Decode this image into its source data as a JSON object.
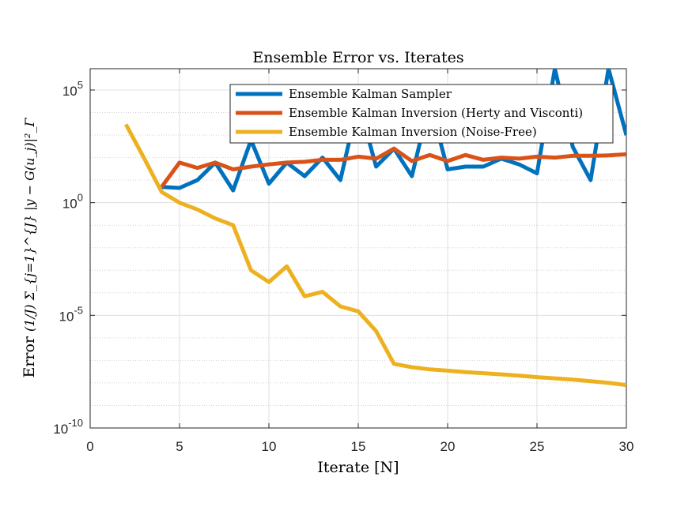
{
  "chart_data": {
    "type": "line",
    "title": "Ensemble Error vs. Iterates",
    "xlabel": "Iterate [N]",
    "ylabel_text": "Error",
    "ylabel_formula": "(1/J) Σ_{j=1}^{J} |y − G(u_j)|²_Γ",
    "xlim": [
      0,
      30
    ],
    "ylim": [
      1e-10,
      100000.0
    ],
    "yscale": "log",
    "grid": true,
    "x_ticks": [
      "0",
      "5",
      "10",
      "15",
      "20",
      "25",
      "30"
    ],
    "y_ticks": [
      "10^-10",
      "10^-5",
      "10^0",
      "10^5"
    ],
    "legend_position": "top-right",
    "series": [
      {
        "name": "Ensemble Kalman Sampler",
        "color": "#0072BD",
        "x": [
          4,
          5,
          6,
          7,
          8,
          9,
          10,
          11,
          12,
          13,
          14,
          15,
          16,
          17,
          18,
          19,
          20,
          21,
          22,
          23,
          24,
          25,
          26,
          27,
          28,
          29,
          30
        ],
        "y": [
          5,
          4.5,
          10,
          60,
          3.5,
          600,
          7,
          60,
          15,
          100,
          10,
          30000,
          40,
          250,
          15,
          30000,
          30,
          40,
          40,
          90,
          50,
          20,
          300000000,
          300,
          10,
          200000000,
          1000
        ]
      },
      {
        "name": "Ensemble Kalman Inversion (Herty and Visconti)",
        "color": "#D95319",
        "x": [
          4,
          5,
          6,
          7,
          8,
          9,
          10,
          11,
          12,
          13,
          14,
          15,
          16,
          17,
          18,
          19,
          20,
          21,
          22,
          23,
          24,
          25,
          26,
          27,
          28,
          29,
          30
        ],
        "y": [
          5,
          60,
          35,
          60,
          30,
          40,
          50,
          60,
          65,
          80,
          80,
          110,
          90,
          250,
          70,
          130,
          70,
          130,
          80,
          100,
          90,
          110,
          100,
          120,
          120,
          125,
          140
        ]
      },
      {
        "name": "Ensemble Kalman Inversion (Noise-Free)",
        "color": "#EDB120",
        "x": [
          2,
          3,
          4,
          5,
          6,
          7,
          8,
          9,
          10,
          11,
          12,
          13,
          14,
          15,
          16,
          17,
          18,
          19,
          20,
          21,
          22,
          23,
          24,
          25,
          26,
          27,
          28,
          29,
          30
        ],
        "y": [
          3000,
          100,
          3,
          1,
          0.5,
          0.2,
          0.1,
          0.001,
          0.0003,
          0.0015,
          7e-05,
          0.00011,
          2.5e-05,
          1.5e-05,
          2e-06,
          7e-08,
          5e-08,
          4e-08,
          3.5e-08,
          3e-08,
          2.7e-08,
          2.4e-08,
          2.1e-08,
          1.8e-08,
          1.6e-08,
          1.4e-08,
          1.2e-08,
          1e-08,
          8e-09
        ]
      }
    ]
  }
}
